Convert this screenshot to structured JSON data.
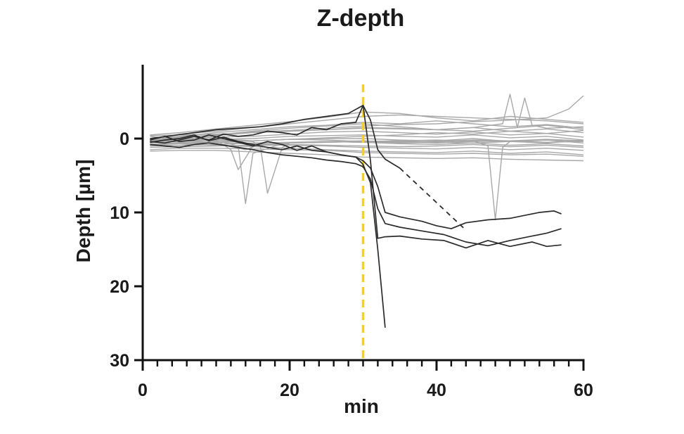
{
  "chart_data": {
    "type": "line",
    "title": "Z-depth",
    "xlabel": "min",
    "ylabel": "Depth [µm]",
    "xlim": [
      0,
      60
    ],
    "ylim": [
      -10,
      30
    ],
    "y_inverted": true,
    "x_ticks": [
      0,
      20,
      40,
      60
    ],
    "x_tick_labels": [
      "0",
      "20",
      "40",
      "60"
    ],
    "y_ticks": [
      0,
      10,
      20,
      30
    ],
    "y_tick_labels": [
      "0",
      "10",
      "20",
      "30"
    ],
    "x_minor_tick_step": 2,
    "grid": false,
    "legend": "none",
    "event_line": {
      "x": 30,
      "color": "#f2d50f",
      "style": "dashed"
    },
    "background_track_color": "#a8a8a8",
    "highlight_track_color": "#2b2b2b",
    "background_tracks": [
      {
        "x": [
          1,
          5,
          10,
          15,
          20,
          25,
          30,
          35,
          40,
          45,
          50,
          55,
          60
        ],
        "y": [
          0.2,
          -0.6,
          -1.0,
          -1.5,
          -2.0,
          -2.5,
          -3.0,
          -3.2,
          -3.0,
          -2.8,
          -2.6,
          -2.4,
          -2.0
        ]
      },
      {
        "x": [
          1,
          5,
          10,
          15,
          20,
          25,
          30,
          35,
          40,
          45,
          50,
          55,
          60
        ],
        "y": [
          0.0,
          -0.3,
          -0.8,
          -1.2,
          -1.6,
          -1.8,
          -2.2,
          -2.0,
          -2.4,
          -2.0,
          -1.6,
          -1.9,
          -1.4
        ]
      },
      {
        "x": [
          1,
          5,
          10,
          15,
          20,
          25,
          30,
          35,
          40,
          45,
          50,
          55,
          60
        ],
        "y": [
          -0.3,
          0.2,
          -0.4,
          -0.8,
          -1.0,
          -1.2,
          -1.5,
          -1.4,
          -1.2,
          -1.5,
          -1.0,
          -1.3,
          -0.8
        ]
      },
      {
        "x": [
          1,
          5,
          10,
          15,
          20,
          25,
          30,
          35,
          40,
          45,
          50,
          55,
          60
        ],
        "y": [
          0.4,
          0.0,
          -0.2,
          -0.3,
          -0.6,
          -0.9,
          -1.0,
          -0.8,
          -0.6,
          -0.9,
          -0.5,
          -0.7,
          -0.2
        ]
      },
      {
        "x": [
          1,
          5,
          10,
          15,
          20,
          25,
          30,
          35,
          40,
          45,
          50,
          55,
          60
        ],
        "y": [
          0.6,
          0.4,
          0.1,
          0.0,
          -0.3,
          -0.4,
          -0.5,
          -0.3,
          -0.2,
          -0.5,
          -0.1,
          -0.3,
          0.2
        ]
      },
      {
        "x": [
          1,
          5,
          10,
          15,
          20,
          25,
          30,
          35,
          40,
          45,
          50,
          55,
          60
        ],
        "y": [
          0.8,
          0.6,
          0.4,
          0.3,
          0.1,
          0.0,
          0.0,
          0.2,
          0.3,
          0.0,
          0.4,
          0.2,
          0.6
        ]
      },
      {
        "x": [
          1,
          5,
          10,
          15,
          20,
          25,
          30,
          35,
          40,
          45,
          50,
          55,
          60
        ],
        "y": [
          1.0,
          0.9,
          0.8,
          0.6,
          0.5,
          0.4,
          0.5,
          0.7,
          0.8,
          0.6,
          0.9,
          0.7,
          1.0
        ]
      },
      {
        "x": [
          1,
          5,
          10,
          15,
          20,
          25,
          30,
          35,
          40,
          45,
          50,
          55,
          60
        ],
        "y": [
          1.2,
          1.1,
          1.0,
          0.9,
          0.9,
          1.0,
          1.2,
          1.3,
          1.4,
          1.2,
          1.5,
          1.3,
          1.6
        ]
      },
      {
        "x": [
          1,
          5,
          10,
          15,
          20,
          25,
          30,
          35,
          40,
          45,
          50,
          55,
          60
        ],
        "y": [
          1.5,
          1.3,
          1.3,
          1.4,
          1.5,
          1.6,
          1.9,
          2.0,
          2.1,
          2.0,
          2.2,
          2.1,
          2.4
        ]
      },
      {
        "x": [
          1,
          5,
          10,
          15,
          20,
          25,
          30,
          35,
          40,
          45,
          50,
          55,
          60
        ],
        "y": [
          1.7,
          1.6,
          1.6,
          1.8,
          2.0,
          2.2,
          2.5,
          2.6,
          2.7,
          2.6,
          2.8,
          2.9,
          3.0
        ]
      },
      {
        "x": [
          1,
          5,
          10,
          15,
          20,
          25,
          30,
          35,
          40,
          45,
          50,
          55,
          60
        ],
        "y": [
          -0.5,
          -0.8,
          -1.3,
          -1.8,
          -2.3,
          -2.9,
          -3.6,
          -3.4,
          -2.8,
          -2.4,
          -3.0,
          -2.6,
          -2.2
        ]
      },
      {
        "x": [
          1,
          5,
          10,
          15,
          20,
          25,
          30,
          35,
          40,
          45,
          50,
          55,
          60
        ],
        "y": [
          0.3,
          -0.1,
          -0.5,
          -1.0,
          -1.4,
          -1.7,
          -2.0,
          -1.6,
          -1.2,
          -1.0,
          -1.4,
          -1.8,
          -1.2
        ]
      },
      {
        "x": [
          1,
          5,
          10,
          15,
          20,
          25,
          30,
          35,
          40,
          45,
          50,
          55,
          60
        ],
        "y": [
          0.1,
          0.3,
          0.5,
          0.7,
          0.8,
          0.9,
          1.0,
          1.1,
          1.0,
          0.8,
          1.1,
          0.9,
          1.2
        ]
      },
      {
        "x": [
          1,
          5,
          10,
          15,
          20,
          25,
          30,
          35,
          40,
          45,
          50,
          55,
          60
        ],
        "y": [
          0.5,
          0.7,
          0.9,
          1.1,
          1.3,
          1.5,
          1.7,
          1.8,
          1.9,
          1.7,
          2.0,
          1.8,
          2.2
        ]
      },
      {
        "x": [
          1,
          5,
          10,
          14,
          16,
          20,
          25,
          30,
          35,
          40,
          45,
          50,
          55,
          60
        ],
        "y": [
          0.3,
          0.5,
          0.6,
          1.5,
          0.8,
          0.6,
          0.5,
          0.4,
          0.6,
          0.5,
          0.4,
          0.3,
          0.5,
          0.4
        ]
      },
      {
        "x": [
          1,
          5,
          10,
          13,
          14,
          15,
          18,
          20,
          25,
          30,
          35,
          40,
          45,
          50,
          55,
          60
        ],
        "y": [
          0.2,
          0.0,
          0.3,
          1.0,
          8.8,
          2.0,
          1.0,
          0.6,
          0.4,
          0.3,
          0.5,
          0.4,
          0.2,
          0.3,
          0.1,
          0.3
        ]
      },
      {
        "x": [
          1,
          5,
          10,
          15,
          16,
          17,
          19,
          20,
          25,
          30,
          35,
          40,
          45,
          50,
          55,
          60
        ],
        "y": [
          0.5,
          0.4,
          0.2,
          0.4,
          1.0,
          7.4,
          1.2,
          0.6,
          0.5,
          0.4,
          0.3,
          0.5,
          0.6,
          0.4,
          0.5,
          0.3
        ]
      },
      {
        "x": [
          1,
          5,
          10,
          12,
          13,
          15,
          20,
          25,
          30,
          35,
          40,
          45,
          50,
          55,
          60
        ],
        "y": [
          0.4,
          0.3,
          0.2,
          1.5,
          4.2,
          1.0,
          0.6,
          0.4,
          0.5,
          0.4,
          0.6,
          0.3,
          0.4,
          0.6,
          0.2
        ]
      },
      {
        "x": [
          1,
          5,
          10,
          15,
          20,
          25,
          30,
          35,
          40,
          45,
          47,
          48,
          49,
          50,
          55,
          60
        ],
        "y": [
          0.1,
          0.2,
          0.0,
          0.3,
          0.1,
          0.2,
          0.4,
          0.3,
          0.2,
          0.3,
          1.0,
          11.0,
          1.2,
          0.4,
          0.2,
          0.3
        ]
      },
      {
        "x": [
          1,
          5,
          10,
          15,
          20,
          25,
          30,
          35,
          40,
          45,
          49,
          50,
          51,
          52,
          53,
          55,
          60
        ],
        "y": [
          -0.4,
          -0.5,
          -0.6,
          -0.8,
          -1.0,
          -1.2,
          -1.4,
          -1.3,
          -1.2,
          -1.5,
          -2.0,
          -6.0,
          -1.5,
          -5.5,
          -1.8,
          -1.4,
          -1.6
        ]
      },
      {
        "x": [
          1,
          5,
          10,
          15,
          20,
          25,
          30,
          35,
          40,
          45,
          50,
          55,
          58,
          60
        ],
        "y": [
          0.2,
          -0.2,
          -0.5,
          -0.9,
          -1.1,
          -1.4,
          -1.7,
          -1.9,
          -2.0,
          -2.3,
          -2.5,
          -2.8,
          -4.0,
          -5.8
        ]
      },
      {
        "x": [
          1,
          5,
          10,
          15,
          20,
          25,
          30,
          35,
          40,
          45,
          50,
          55,
          60
        ],
        "y": [
          0.9,
          0.7,
          0.5,
          0.3,
          0.1,
          -0.1,
          -0.3,
          -0.5,
          -0.8,
          -0.6,
          -1.0,
          -0.7,
          -1.1
        ]
      }
    ],
    "highlight_tracks": [
      {
        "x": [
          1,
          3,
          5,
          7,
          9,
          11,
          13,
          15,
          17,
          19,
          21,
          23,
          25,
          27,
          29,
          30,
          31,
          32,
          33
        ],
        "y": [
          0.5,
          0.2,
          0.0,
          -0.5,
          0.3,
          -0.2,
          0.4,
          0.8,
          1.2,
          1.5,
          1.0,
          1.6,
          1.8,
          2.2,
          2.5,
          3.5,
          6.0,
          15.0,
          25.6
        ]
      },
      {
        "x": [
          1,
          3,
          5,
          7,
          9,
          11,
          13,
          15,
          17,
          19,
          21,
          23,
          25,
          27,
          29,
          30,
          31,
          32,
          33,
          35,
          38,
          41,
          44,
          47,
          50,
          53,
          55,
          57
        ],
        "y": [
          0.4,
          0.6,
          0.2,
          -0.3,
          0.2,
          -0.6,
          -0.3,
          -0.5,
          -1.0,
          -0.8,
          -0.5,
          -1.5,
          -1.2,
          -2.0,
          -2.2,
          -4.5,
          3.0,
          13.5,
          13.3,
          13.2,
          13.6,
          13.8,
          14.8,
          13.8,
          14.6,
          14.0,
          14.6,
          14.4
        ]
      },
      {
        "x": [
          1,
          3,
          5,
          7,
          9,
          11,
          13,
          15,
          17,
          19,
          21,
          23,
          25,
          27,
          29,
          30,
          31,
          32,
          33,
          35,
          38,
          40,
          42,
          44,
          47,
          50,
          52,
          54,
          56,
          57
        ],
        "y": [
          0.2,
          -0.3,
          0.4,
          0.2,
          -0.5,
          0.0,
          0.5,
          1.0,
          0.4,
          0.8,
          1.6,
          1.0,
          1.8,
          2.2,
          2.5,
          3.0,
          4.0,
          6.5,
          10.0,
          10.6,
          11.2,
          11.8,
          12.2,
          11.4,
          11.0,
          10.8,
          10.4,
          10.0,
          9.8,
          10.2
        ]
      },
      {
        "x": [
          1,
          3,
          5,
          7,
          9,
          11,
          13,
          15,
          17,
          19,
          21,
          23,
          25,
          27,
          29,
          30,
          31,
          32,
          33,
          35,
          38,
          41,
          44,
          47,
          50,
          53,
          55,
          57
        ],
        "y": [
          0.8,
          1.0,
          1.2,
          0.8,
          0.6,
          0.9,
          1.2,
          1.5,
          1.9,
          2.2,
          2.4,
          2.6,
          2.9,
          3.1,
          3.4,
          3.8,
          5.5,
          9.5,
          11.5,
          12.0,
          12.5,
          13.0,
          14.0,
          14.5,
          13.8,
          13.2,
          12.8,
          12.2
        ]
      },
      {
        "x": [
          1,
          4,
          7,
          10,
          13,
          16,
          19,
          22,
          25,
          28,
          30,
          31,
          32,
          33,
          35
        ],
        "y": [
          0.0,
          -0.4,
          -0.8,
          -1.2,
          -1.4,
          -1.6,
          -2.0,
          -2.6,
          -3.0,
          -3.4,
          -4.5,
          -2.5,
          1.5,
          2.8,
          4.0
        ]
      }
    ],
    "dashed_connector": {
      "x": [
        35,
        44
      ],
      "y": [
        4.0,
        12.4
      ]
    }
  }
}
